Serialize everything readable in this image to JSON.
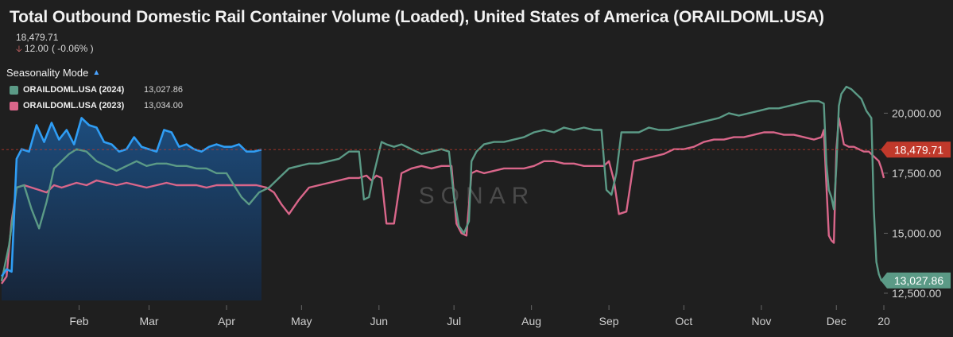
{
  "header": {
    "title": "Total Outbound Domestic Rail Container Volume (Loaded), United States of America (ORAILDOML.USA)",
    "last_value": "18,479.71",
    "change_abs": "12.00",
    "change_pct": "-0.06%"
  },
  "legend": {
    "mode_label": "Seasonality Mode",
    "items": [
      {
        "name": "ORAILDOML.USA (2024)",
        "value": "13,027.86",
        "color": "#5b9a86"
      },
      {
        "name": "ORAILDOML.USA (2023)",
        "value": "13,034.00",
        "color": "#d9668a"
      }
    ]
  },
  "watermark": "SONAR",
  "colors": {
    "background": "#1f1f1f",
    "series_2025": "#2f9df4",
    "series_2024": "#5b9a86",
    "series_2023": "#d9668a",
    "current_badge": "#c0392b",
    "area_top": "#1d4f82",
    "area_bottom": "#16253a"
  },
  "chart_data": {
    "type": "line",
    "title": "Total Outbound Domestic Rail Container Volume (Loaded), United States of America (ORAILDOML.USA)",
    "x_axis": {
      "type": "date",
      "range": [
        "2025-01-01",
        "2025-12-20"
      ],
      "tick_labels": [
        "Feb",
        "Mar",
        "Apr",
        "May",
        "Jun",
        "Jul",
        "Aug",
        "Sep",
        "Oct",
        "Nov",
        "Dec",
        "20"
      ],
      "tick_dates": [
        "2025-02-01",
        "2025-03-01",
        "2025-04-01",
        "2025-05-01",
        "2025-06-01",
        "2025-07-01",
        "2025-08-01",
        "2025-09-01",
        "2025-10-01",
        "2025-11-01",
        "2025-12-01",
        "2025-12-20"
      ]
    },
    "y_axis": {
      "range": [
        12200,
        21800
      ],
      "tick_values": [
        12500,
        15000,
        17500,
        20000
      ],
      "tick_labels": [
        "12,500.00",
        "15,000.00",
        "17,500.00",
        "20,000.00"
      ],
      "position": "right"
    },
    "grid": false,
    "legend_position": "top-left",
    "current_value_line": {
      "value": 18479.71,
      "label": "18,479.71"
    },
    "series": [
      {
        "name": "ORAILDOML.USA",
        "style": "area",
        "x": [
          "2025-01-01",
          "2025-01-03",
          "2025-01-05",
          "2025-01-07",
          "2025-01-09",
          "2025-01-12",
          "2025-01-15",
          "2025-01-18",
          "2025-01-21",
          "2025-01-24",
          "2025-01-27",
          "2025-01-30",
          "2025-02-02",
          "2025-02-05",
          "2025-02-08",
          "2025-02-11",
          "2025-02-14",
          "2025-02-17",
          "2025-02-20",
          "2025-02-23",
          "2025-02-26",
          "2025-03-01",
          "2025-03-04",
          "2025-03-07",
          "2025-03-10",
          "2025-03-13",
          "2025-03-16",
          "2025-03-19",
          "2025-03-22",
          "2025-03-25",
          "2025-03-28",
          "2025-03-31",
          "2025-04-03",
          "2025-04-06",
          "2025-04-09",
          "2025-04-12",
          "2025-04-15"
        ],
        "y": [
          13200,
          13500,
          13400,
          18100,
          18500,
          18400,
          19500,
          18800,
          19600,
          18900,
          19300,
          18700,
          19800,
          19500,
          19400,
          18800,
          18700,
          18400,
          18500,
          19000,
          18600,
          18500,
          18400,
          19300,
          19200,
          18600,
          18700,
          18500,
          18400,
          18600,
          18700,
          18600,
          18600,
          18700,
          18400,
          18400,
          18480
        ]
      },
      {
        "name": "ORAILDOML.USA (2024)",
        "x": [
          "2025-01-01",
          "2025-01-04",
          "2025-01-07",
          "2025-01-10",
          "2025-01-13",
          "2025-01-16",
          "2025-01-19",
          "2025-01-22",
          "2025-01-25",
          "2025-01-28",
          "2025-01-31",
          "2025-02-04",
          "2025-02-08",
          "2025-02-12",
          "2025-02-16",
          "2025-02-20",
          "2025-02-24",
          "2025-02-28",
          "2025-03-04",
          "2025-03-08",
          "2025-03-12",
          "2025-03-16",
          "2025-03-20",
          "2025-03-24",
          "2025-03-28",
          "2025-04-01",
          "2025-04-04",
          "2025-04-07",
          "2025-04-10",
          "2025-04-14",
          "2025-04-18",
          "2025-04-22",
          "2025-04-26",
          "2025-04-30",
          "2025-05-04",
          "2025-05-08",
          "2025-05-12",
          "2025-05-16",
          "2025-05-20",
          "2025-05-24",
          "2025-05-26",
          "2025-05-28",
          "2025-05-30",
          "2025-06-02",
          "2025-06-04",
          "2025-06-07",
          "2025-06-10",
          "2025-06-14",
          "2025-06-18",
          "2025-06-22",
          "2025-06-26",
          "2025-06-29",
          "2025-07-01",
          "2025-07-03",
          "2025-07-05",
          "2025-07-07",
          "2025-07-08",
          "2025-07-10",
          "2025-07-13",
          "2025-07-17",
          "2025-07-21",
          "2025-07-25",
          "2025-07-29",
          "2025-08-02",
          "2025-08-06",
          "2025-08-10",
          "2025-08-14",
          "2025-08-18",
          "2025-08-22",
          "2025-08-26",
          "2025-08-29",
          "2025-08-31",
          "2025-09-02",
          "2025-09-04",
          "2025-09-06",
          "2025-09-09",
          "2025-09-13",
          "2025-09-17",
          "2025-09-21",
          "2025-09-25",
          "2025-09-29",
          "2025-10-03",
          "2025-10-07",
          "2025-10-11",
          "2025-10-15",
          "2025-10-19",
          "2025-10-23",
          "2025-10-27",
          "2025-10-31",
          "2025-11-04",
          "2025-11-08",
          "2025-11-12",
          "2025-11-16",
          "2025-11-20",
          "2025-11-24",
          "2025-11-26",
          "2025-11-27",
          "2025-11-28",
          "2025-11-29",
          "2025-11-30",
          "2025-12-01",
          "2025-12-02",
          "2025-12-03",
          "2025-12-05",
          "2025-12-07",
          "2025-12-09",
          "2025-12-11",
          "2025-12-13",
          "2025-12-15",
          "2025-12-16",
          "2025-12-17",
          "2025-12-18",
          "2025-12-19",
          "2025-12-20"
        ],
        "y": [
          13000,
          14500,
          16900,
          17000,
          16000,
          15200,
          16300,
          17700,
          18000,
          18300,
          18500,
          18400,
          18000,
          17800,
          17600,
          17800,
          18000,
          17800,
          17900,
          17900,
          17800,
          17800,
          17700,
          17700,
          17500,
          17500,
          17000,
          16500,
          16200,
          16700,
          16900,
          17300,
          17700,
          17800,
          17900,
          17900,
          18000,
          18100,
          18400,
          18400,
          16400,
          16500,
          17500,
          18800,
          18700,
          18600,
          18700,
          18500,
          18300,
          18400,
          18500,
          18400,
          16500,
          15300,
          15000,
          15500,
          18000,
          18400,
          18700,
          18800,
          18800,
          18900,
          19000,
          19200,
          19300,
          19200,
          19400,
          19300,
          19400,
          19300,
          19300,
          16800,
          16600,
          17500,
          19200,
          19200,
          19200,
          19400,
          19300,
          19300,
          19400,
          19500,
          19600,
          19700,
          19800,
          20000,
          19900,
          20000,
          20100,
          20200,
          20200,
          20300,
          20400,
          20500,
          20500,
          20400,
          17900,
          16800,
          16500,
          16000,
          17800,
          20300,
          20800,
          21100,
          21000,
          20800,
          20600,
          20100,
          19800,
          16000,
          13800,
          13300,
          13030,
          13030
        ]
      },
      {
        "name": "ORAILDOML.USA (2023)",
        "x": [
          "2025-01-01",
          "2025-01-03",
          "2025-01-05",
          "2025-01-07",
          "2025-01-10",
          "2025-01-13",
          "2025-01-16",
          "2025-01-19",
          "2025-01-22",
          "2025-01-25",
          "2025-01-28",
          "2025-01-31",
          "2025-02-04",
          "2025-02-08",
          "2025-02-12",
          "2025-02-16",
          "2025-02-20",
          "2025-02-24",
          "2025-02-28",
          "2025-03-04",
          "2025-03-08",
          "2025-03-12",
          "2025-03-16",
          "2025-03-20",
          "2025-03-24",
          "2025-03-28",
          "2025-04-01",
          "2025-04-05",
          "2025-04-09",
          "2025-04-13",
          "2025-04-17",
          "2025-04-20",
          "2025-04-23",
          "2025-04-26",
          "2025-04-30",
          "2025-05-04",
          "2025-05-08",
          "2025-05-12",
          "2025-05-16",
          "2025-05-20",
          "2025-05-24",
          "2025-05-27",
          "2025-05-29",
          "2025-05-31",
          "2025-06-02",
          "2025-06-04",
          "2025-06-07",
          "2025-06-10",
          "2025-06-14",
          "2025-06-18",
          "2025-06-22",
          "2025-06-26",
          "2025-06-30",
          "2025-07-02",
          "2025-07-04",
          "2025-07-06",
          "2025-07-08",
          "2025-07-10",
          "2025-07-13",
          "2025-07-17",
          "2025-07-21",
          "2025-07-25",
          "2025-07-29",
          "2025-08-02",
          "2025-08-06",
          "2025-08-10",
          "2025-08-14",
          "2025-08-18",
          "2025-08-22",
          "2025-08-26",
          "2025-08-30",
          "2025-09-01",
          "2025-09-03",
          "2025-09-05",
          "2025-09-08",
          "2025-09-11",
          "2025-09-15",
          "2025-09-19",
          "2025-09-23",
          "2025-09-27",
          "2025-10-01",
          "2025-10-05",
          "2025-10-09",
          "2025-10-13",
          "2025-10-17",
          "2025-10-21",
          "2025-10-25",
          "2025-10-29",
          "2025-11-02",
          "2025-11-06",
          "2025-11-10",
          "2025-11-14",
          "2025-11-18",
          "2025-11-22",
          "2025-11-25",
          "2025-11-26",
          "2025-11-27",
          "2025-11-28",
          "2025-11-29",
          "2025-11-30",
          "2025-12-01",
          "2025-12-02",
          "2025-12-04",
          "2025-12-06",
          "2025-12-08",
          "2025-12-10",
          "2025-12-12",
          "2025-12-14",
          "2025-12-16",
          "2025-12-18",
          "2025-12-19",
          "2025-12-20"
        ],
        "y": [
          12900,
          13200,
          15500,
          16900,
          17000,
          16900,
          16800,
          16700,
          17000,
          16900,
          17000,
          17100,
          17000,
          17200,
          17100,
          17000,
          17100,
          17000,
          16900,
          17000,
          17100,
          17000,
          17000,
          17000,
          16900,
          17000,
          17000,
          17000,
          17000,
          17000,
          16900,
          16700,
          16200,
          15800,
          16400,
          16900,
          17000,
          17100,
          17200,
          17300,
          17300,
          17400,
          17200,
          17400,
          17300,
          15400,
          15400,
          17500,
          17700,
          17800,
          17700,
          17800,
          17800,
          15400,
          15000,
          14900,
          17500,
          17600,
          17500,
          17600,
          17700,
          17700,
          17700,
          17800,
          18000,
          18000,
          17900,
          17900,
          17800,
          17800,
          17800,
          18000,
          17200,
          15800,
          15900,
          18000,
          18100,
          18200,
          18300,
          18500,
          18500,
          18600,
          18800,
          18900,
          18900,
          19000,
          19000,
          19100,
          19200,
          19200,
          19100,
          19100,
          19000,
          18900,
          19000,
          19300,
          17000,
          14900,
          14700,
          14600,
          18500,
          19800,
          18700,
          18600,
          18600,
          18500,
          18400,
          18400,
          18200,
          18000,
          17700,
          17300
        ]
      }
    ]
  }
}
